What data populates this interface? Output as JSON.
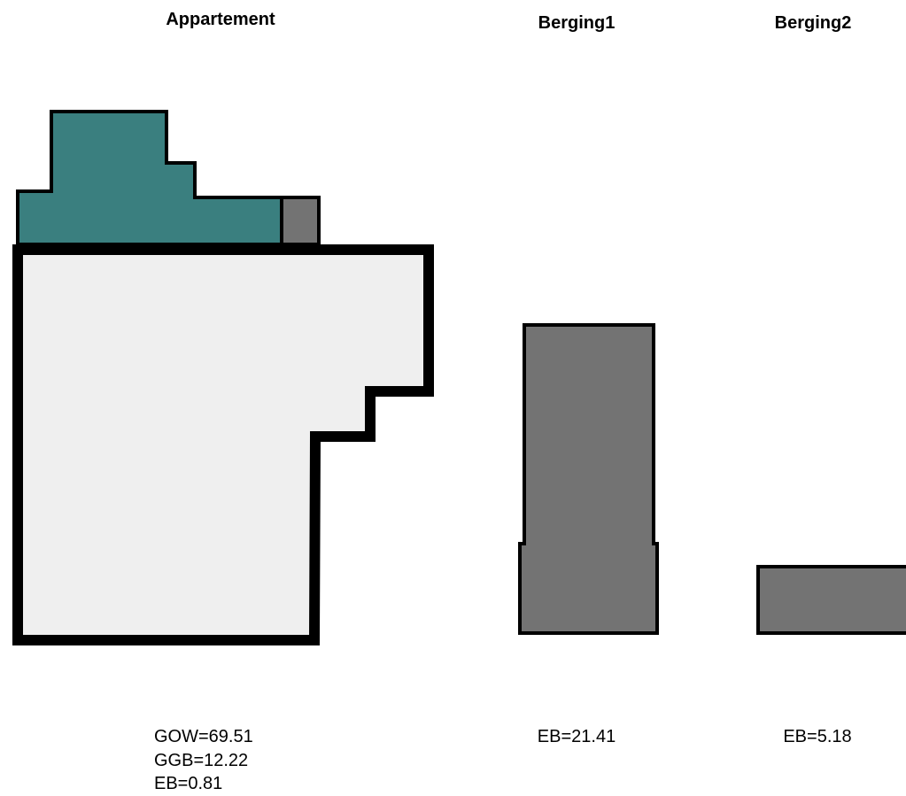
{
  "colors": {
    "background": "#ffffff",
    "apartment_fill": "#efefef",
    "outline": "#000000",
    "outdoor_fill": "#3a7f7f",
    "storage_fill": "#737373"
  },
  "units": [
    {
      "title": "Appartement",
      "metrics": [
        "GOW=69.51",
        "GGB=12.22",
        "EB=0.81"
      ]
    },
    {
      "title": "Berging1",
      "metrics": [
        "EB=21.41"
      ]
    },
    {
      "title": "Berging2",
      "metrics": [
        "EB=5.18"
      ]
    }
  ]
}
